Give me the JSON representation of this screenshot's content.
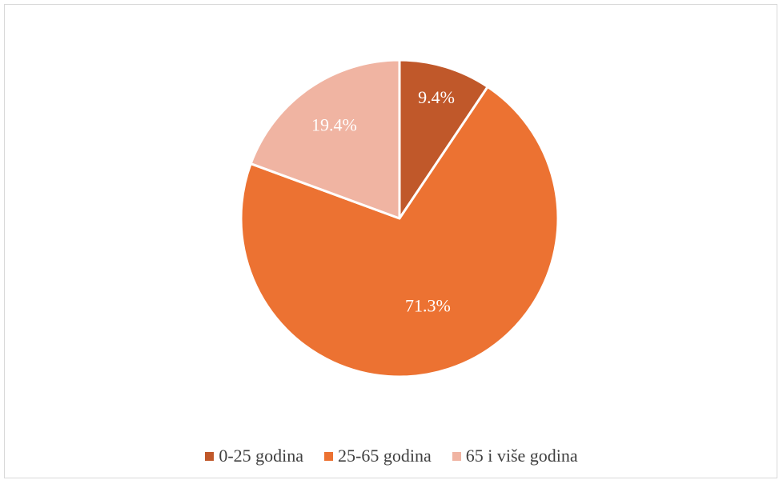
{
  "chart_data": {
    "type": "pie",
    "categories": [
      "0-25 godina",
      "25-65 godina",
      "65 i više godina"
    ],
    "values": [
      9.4,
      71.3,
      19.4
    ],
    "labels": [
      "9.4%",
      "71.3%",
      "19.4%"
    ],
    "colors": [
      "#c0582a",
      "#ec7232",
      "#f0b4a2"
    ],
    "title": "",
    "legend_position": "bottom"
  }
}
